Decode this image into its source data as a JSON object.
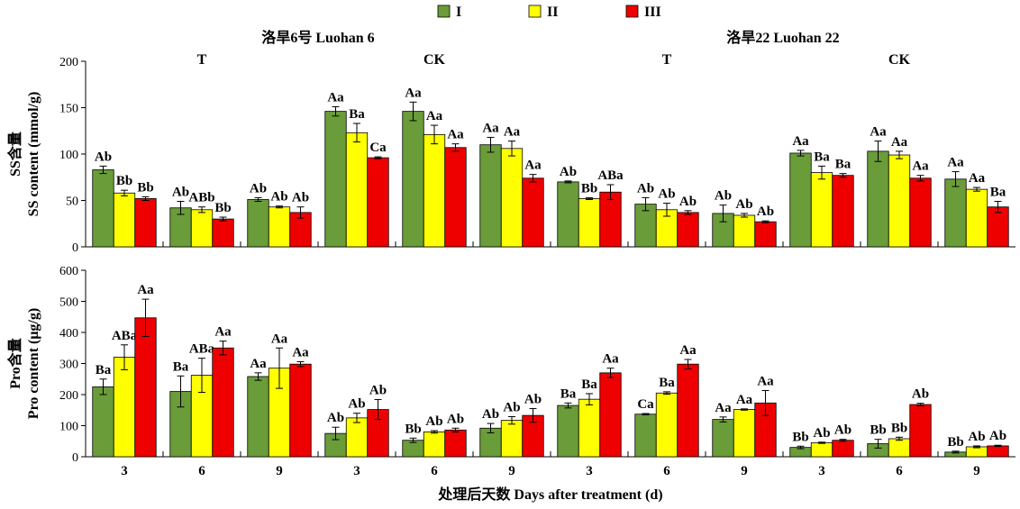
{
  "colors": {
    "I": "#6a9c3a",
    "II": "#ffff00",
    "III": "#ee0000"
  },
  "legend": [
    "I",
    "II",
    "III"
  ],
  "cultivar_titles": [
    "洛旱6号 Luohan 6",
    "洛旱22 Luohan 22"
  ],
  "treatment_labels": [
    "T",
    "CK",
    "T",
    "CK"
  ],
  "x_categories": [
    "3",
    "6",
    "9",
    "3",
    "6",
    "9",
    "3",
    "6",
    "9",
    "3",
    "6",
    "9"
  ],
  "x_axis_title": "处理后天数 Days after treatment (d)",
  "chart_data": [
    {
      "type": "bar",
      "ylabel_cn": "SS含量",
      "ylabel_en": "SS content (mmol/g)",
      "ylim": [
        0,
        200
      ],
      "yticks": [
        0,
        50,
        100,
        150,
        200
      ],
      "series": [
        {
          "name": "I",
          "values": [
            83,
            42,
            51,
            146,
            146,
            110,
            70,
            46,
            36,
            101,
            103,
            73
          ],
          "errors": [
            4,
            7,
            2,
            5,
            10,
            8,
            1,
            7,
            9,
            3,
            11,
            8
          ],
          "labels": [
            "Ab",
            "Ab",
            "Ab",
            "Aa",
            "Aa",
            "Aa",
            "Ab",
            "Ab",
            "Ab",
            "Aa",
            "Aa",
            "Aa"
          ]
        },
        {
          "name": "II",
          "values": [
            58,
            40,
            43,
            123,
            121,
            106,
            52,
            40,
            34,
            80,
            99,
            62
          ],
          "errors": [
            3,
            3,
            1,
            10,
            10,
            8,
            1,
            7,
            2,
            7,
            4,
            2
          ],
          "labels": [
            "Bb",
            "ABb",
            "Ab",
            "Ba",
            "Aa",
            "Aa",
            "Bb",
            "Ab",
            "Ab",
            "Ba",
            "Aa",
            "Aa"
          ]
        },
        {
          "name": "III",
          "values": [
            52,
            30,
            37,
            96,
            107,
            74,
            59,
            37,
            27,
            77,
            74,
            43
          ],
          "errors": [
            2,
            2,
            6,
            1,
            4,
            4,
            8,
            2,
            1,
            2,
            3,
            6
          ],
          "labels": [
            "Bb",
            "Bb",
            "Ab",
            "Ca",
            "Aa",
            "Aa",
            "ABa",
            "Ab",
            "Ab",
            "Ba",
            "Aa",
            "Ba"
          ]
        }
      ]
    },
    {
      "type": "bar",
      "ylabel_cn": "Pro含量",
      "ylabel_en": "Pro content (μg/g)",
      "ylim": [
        0,
        600
      ],
      "yticks": [
        0,
        100,
        200,
        300,
        400,
        500,
        600
      ],
      "series": [
        {
          "name": "I",
          "values": [
            225,
            210,
            258,
            75,
            53,
            92,
            165,
            137,
            120,
            30,
            42,
            15
          ],
          "errors": [
            25,
            50,
            12,
            20,
            7,
            15,
            8,
            2,
            8,
            4,
            14,
            3
          ],
          "labels": [
            "Ba",
            "Ba",
            "Aa",
            "Ab",
            "Bb",
            "Ab",
            "Ba",
            "Ca",
            "Aa",
            "Bb",
            "Bb",
            "Bb"
          ]
        },
        {
          "name": "II",
          "values": [
            320,
            262,
            285,
            125,
            80,
            117,
            185,
            205,
            152,
            45,
            58,
            32
          ],
          "errors": [
            40,
            55,
            65,
            15,
            4,
            12,
            18,
            4,
            2,
            2,
            5,
            3
          ],
          "labels": [
            "ABa",
            "ABa",
            "Aa",
            "Ab",
            "Ab",
            "Ab",
            "Ba",
            "Ba",
            "Aa",
            "Ab",
            "Bb",
            "Ab"
          ]
        },
        {
          "name": "III",
          "values": [
            447,
            350,
            298,
            152,
            86,
            133,
            270,
            298,
            173,
            53,
            168,
            35
          ],
          "errors": [
            60,
            22,
            8,
            32,
            6,
            22,
            15,
            15,
            40,
            3,
            4,
            2
          ],
          "labels": [
            "Aa",
            "Aa",
            "Aa",
            "Ab",
            "Ab",
            "Ab",
            "Aa",
            "Aa",
            "Aa",
            "Ab",
            "Ab",
            "Ab"
          ]
        }
      ]
    }
  ]
}
